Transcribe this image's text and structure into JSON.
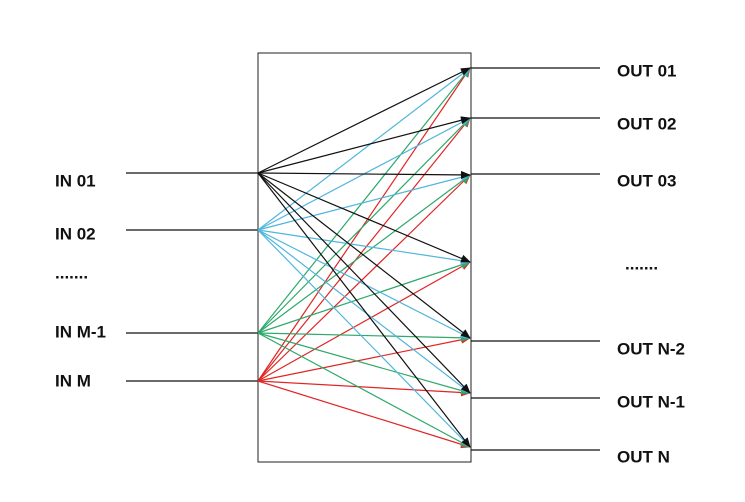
{
  "inputs": [
    "IN 01",
    "IN 02",
    ".......",
    "IN M-1",
    "IN M"
  ],
  "outputs": [
    "OUT 01",
    "OUT 02",
    "OUT 03",
    ".......",
    "OUT N-2",
    "OUT N-1",
    "OUT N"
  ]
}
